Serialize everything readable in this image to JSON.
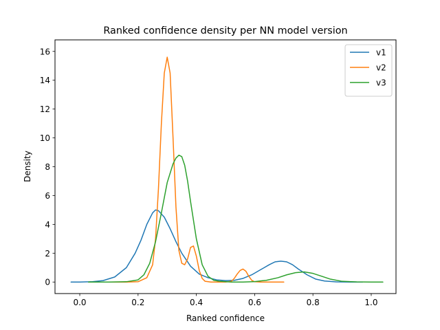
{
  "chart_data": {
    "type": "line",
    "title": "Ranked confidence density per NN model version",
    "xlabel": "Ranked confidence",
    "ylabel": "Density",
    "xlim": [
      -0.085,
      1.085
    ],
    "ylim": [
      -0.8,
      16.8
    ],
    "xticks": [
      0.0,
      0.2,
      0.4,
      0.6,
      0.8,
      1.0
    ],
    "xtick_labels": [
      "0.0",
      "0.2",
      "0.4",
      "0.6",
      "0.8",
      "1.0"
    ],
    "yticks": [
      0,
      2,
      4,
      6,
      8,
      10,
      12,
      14,
      16
    ],
    "ytick_labels": [
      "0",
      "2",
      "4",
      "6",
      "8",
      "10",
      "12",
      "14",
      "16"
    ],
    "grid": false,
    "legend_position": "top-right",
    "series": [
      {
        "name": "v1",
        "color": "#1f77b4",
        "x": [
          -0.03,
          0.0,
          0.04,
          0.08,
          0.12,
          0.16,
          0.19,
          0.21,
          0.23,
          0.25,
          0.26,
          0.27,
          0.29,
          0.31,
          0.33,
          0.35,
          0.38,
          0.41,
          0.44,
          0.47,
          0.5,
          0.53,
          0.56,
          0.59,
          0.62,
          0.65,
          0.67,
          0.69,
          0.71,
          0.73,
          0.75,
          0.78,
          0.81,
          0.84,
          0.88,
          0.93,
          0.97
        ],
        "y": [
          0.0,
          0.0,
          0.02,
          0.1,
          0.35,
          1.0,
          2.0,
          2.9,
          4.0,
          4.8,
          5.0,
          4.95,
          4.5,
          3.7,
          2.8,
          2.0,
          1.1,
          0.55,
          0.3,
          0.15,
          0.1,
          0.12,
          0.25,
          0.5,
          0.85,
          1.2,
          1.4,
          1.45,
          1.4,
          1.2,
          0.9,
          0.5,
          0.2,
          0.07,
          0.01,
          0.0,
          0.0
        ]
      },
      {
        "name": "v2",
        "color": "#ff7f0e",
        "x": [
          0.04,
          0.1,
          0.16,
          0.2,
          0.23,
          0.25,
          0.26,
          0.27,
          0.28,
          0.29,
          0.3,
          0.31,
          0.32,
          0.33,
          0.34,
          0.35,
          0.36,
          0.37,
          0.38,
          0.39,
          0.4,
          0.41,
          0.42,
          0.43,
          0.45,
          0.47,
          0.5,
          0.52,
          0.53,
          0.54,
          0.55,
          0.56,
          0.57,
          0.58,
          0.59,
          0.6,
          0.62,
          0.66,
          0.7
        ],
        "y": [
          0.0,
          0.0,
          0.0,
          0.02,
          0.3,
          1.2,
          3.0,
          6.5,
          11.0,
          14.5,
          15.6,
          14.5,
          10.0,
          5.2,
          2.2,
          1.3,
          1.2,
          1.6,
          2.4,
          2.5,
          1.8,
          0.8,
          0.25,
          0.05,
          0.0,
          0.0,
          0.0,
          0.05,
          0.25,
          0.55,
          0.8,
          0.9,
          0.75,
          0.4,
          0.12,
          0.02,
          0.0,
          0.0,
          0.0
        ]
      },
      {
        "name": "v3",
        "color": "#2ca02c",
        "x": [
          0.03,
          0.1,
          0.16,
          0.2,
          0.22,
          0.24,
          0.26,
          0.28,
          0.3,
          0.32,
          0.33,
          0.34,
          0.35,
          0.36,
          0.37,
          0.38,
          0.4,
          0.42,
          0.44,
          0.46,
          0.48,
          0.52,
          0.56,
          0.6,
          0.64,
          0.68,
          0.71,
          0.74,
          0.77,
          0.8,
          0.83,
          0.86,
          0.9,
          0.95,
          1.0,
          1.04
        ],
        "y": [
          0.0,
          0.0,
          0.02,
          0.15,
          0.5,
          1.3,
          2.8,
          4.8,
          6.9,
          8.2,
          8.6,
          8.8,
          8.7,
          8.1,
          7.0,
          5.6,
          3.0,
          1.2,
          0.4,
          0.12,
          0.05,
          0.0,
          0.0,
          0.03,
          0.12,
          0.3,
          0.5,
          0.65,
          0.7,
          0.6,
          0.4,
          0.2,
          0.05,
          0.01,
          0.0,
          0.0
        ]
      }
    ]
  }
}
